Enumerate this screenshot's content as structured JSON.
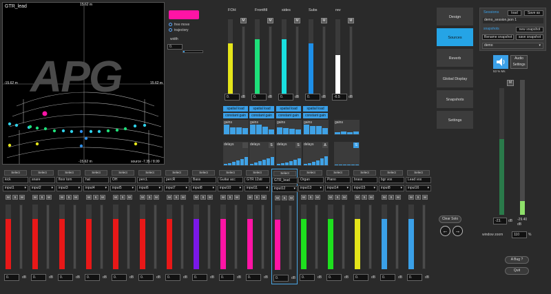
{
  "plan": {
    "title": "GTR_lead",
    "top_label": "15.62 m",
    "left_label": "-15.62 m",
    "right_label": "15.62 m",
    "bottom_label": "-15.62 m",
    "source_label": "source -7.35 / 8.99",
    "logo": "APG"
  },
  "options": {
    "free_move": "free move",
    "trajectory": "trajectory",
    "width_label": "width",
    "width_value": "0."
  },
  "buses": [
    {
      "name": "FOH",
      "color": "#e5e51a",
      "level": 0.7,
      "meter": 0.0,
      "value": "0.",
      "unit": "dB",
      "mute": "M"
    },
    {
      "name": "Frontfill",
      "color": "#1ee07a",
      "level": 0.75,
      "meter": 0.0,
      "value": "0.",
      "unit": "dB",
      "mute": "M"
    },
    {
      "name": "sides",
      "color": "#19e0e0",
      "level": 0.75,
      "meter": 0.0,
      "value": "0.",
      "unit": "dB",
      "mute": "M"
    },
    {
      "name": "Subs",
      "color": "#1e8fe8",
      "level": 0.7,
      "meter": 0.0,
      "value": "0.",
      "unit": "dB",
      "mute": "M"
    },
    {
      "name": "rev",
      "color": "#ffffff",
      "level": 0.55,
      "meter": 0.0,
      "value": "-6.5",
      "unit": "dB",
      "mute": "M"
    }
  ],
  "matrix": {
    "spatial_load": "spatial load",
    "constant_gain": "constant gain",
    "gains_label": "gains",
    "delays_label": "delays",
    "delay_icons": [
      "",
      "S",
      "S",
      "Δ",
      "S"
    ]
  },
  "nav": {
    "items": [
      "Design",
      "Sources",
      "Reverb",
      "Global Display",
      "Snapshots",
      "Settings"
    ],
    "active": "Sources"
  },
  "session": {
    "sessions_label": "Sessions",
    "load": "load",
    "save_as": "Save as",
    "file": "demo_session.json 1",
    "snapshots_label": "snapshots",
    "new_snapshot": "new snapshot",
    "rename_snapshot": "Rename snapshot",
    "save_snapshot": "save snapshot",
    "selected": "demo"
  },
  "audio": {
    "cpu": "53 %",
    "cpu_unit": "Ms",
    "settings_label": "Audio Settings",
    "mute": "M",
    "left_value": "-23.",
    "right_value": "-29.40",
    "unit": "dB",
    "window_zoom_label": "window zoom",
    "zoom_value": "110",
    "zoom_unit": "%"
  },
  "buttons": {
    "clear_solo": "Clear Solo",
    "bug": "A Bug ?",
    "quit": "Quit"
  },
  "strips": [
    {
      "name": "kick",
      "input": "input1",
      "color": "#e81818",
      "level": 0.78,
      "meter": 0.0
    },
    {
      "name": "snare",
      "input": "input2",
      "color": "#e81818",
      "level": 0.78,
      "meter": 0.0
    },
    {
      "name": "floor tom",
      "input": "input3",
      "color": "#e81818",
      "level": 0.78,
      "meter": 0.0
    },
    {
      "name": "hat",
      "input": "input4",
      "color": "#e81818",
      "level": 0.78,
      "meter": 0.0
    },
    {
      "name": "OH",
      "input": "input5",
      "color": "#e81818",
      "level": 0.78,
      "meter": 0.0
    },
    {
      "name": "percL",
      "input": "input6",
      "color": "#e81818",
      "level": 0.78,
      "meter": 0.0
    },
    {
      "name": "percR",
      "input": "input7",
      "color": "#e81818",
      "level": 0.78,
      "meter": 0.0
    },
    {
      "name": "Bass",
      "input": "input8",
      "color": "#7a18e8",
      "level": 0.78,
      "meter": 0.0
    },
    {
      "name": "Guitar acc",
      "input": "input10",
      "color": "#ff14a5",
      "level": 0.78,
      "meter": 0.0
    },
    {
      "name": "GTR 12str",
      "input": "input11",
      "color": "#ff14a5",
      "level": 0.78,
      "meter": 0.0
    },
    {
      "name": "GTR_lead",
      "input": "input12",
      "color": "#ff14a5",
      "level": 0.78,
      "meter": 0.0
    },
    {
      "name": "Organ",
      "input": "input13",
      "color": "#1ee01e",
      "level": 0.78,
      "meter": 0.0
    },
    {
      "name": "Piano",
      "input": "input14",
      "color": "#1ee01e",
      "level": 0.78,
      "meter": 0.0
    },
    {
      "name": "brass",
      "input": "input15",
      "color": "#e5e51a",
      "level": 0.78,
      "meter": 0.0
    },
    {
      "name": "bgr vox",
      "input": "input8",
      "color": "#3aa0e8",
      "level": 0.78,
      "meter": 0.0
    },
    {
      "name": "Lead vox",
      "input": "input16",
      "color": "#3aa0e8",
      "level": 0.78,
      "meter": 0.0
    }
  ],
  "strip_common": {
    "select": "Select",
    "mute": "M",
    "solo": "S",
    "value": "0.",
    "unit": "dB",
    "selected_name": "GTR_lead"
  }
}
